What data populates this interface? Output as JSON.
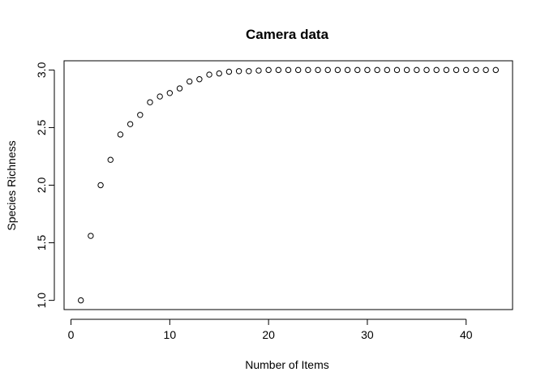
{
  "chart_data": {
    "type": "scatter",
    "title": "Camera data",
    "xlabel": "Number of Items",
    "ylabel": "Species Richness",
    "xlim": [
      -0.7,
      44.7
    ],
    "ylim": [
      0.92,
      3.08
    ],
    "xticks": [
      0,
      10,
      20,
      30,
      40
    ],
    "yticks": [
      1.0,
      1.5,
      2.0,
      2.5,
      3.0
    ],
    "ytick_labels": [
      "1.0",
      "1.5",
      "2.0",
      "2.5",
      "3.0"
    ],
    "grid": false,
    "legend": "none",
    "series": [
      {
        "x": [
          1,
          2,
          3,
          4,
          5,
          6,
          7,
          8,
          9,
          10,
          11,
          12,
          13,
          14,
          15,
          16,
          17,
          18,
          19,
          20,
          21,
          22,
          23,
          24,
          25,
          26,
          27,
          28,
          29,
          30,
          31,
          32,
          33,
          34,
          35,
          36,
          37,
          38,
          39,
          40,
          41,
          42,
          43
        ],
        "y": [
          1.0,
          1.56,
          2.0,
          2.22,
          2.44,
          2.53,
          2.61,
          2.72,
          2.77,
          2.8,
          2.84,
          2.9,
          2.92,
          2.96,
          2.97,
          2.985,
          2.99,
          2.99,
          2.995,
          3.0,
          3.0,
          3.0,
          3.0,
          3.0,
          3.0,
          3.0,
          3.0,
          3.0,
          3.0,
          3.0,
          3.0,
          3.0,
          3.0,
          3.0,
          3.0,
          3.0,
          3.0,
          3.0,
          3.0,
          3.0,
          3.0,
          3.0,
          3.0
        ]
      }
    ]
  }
}
